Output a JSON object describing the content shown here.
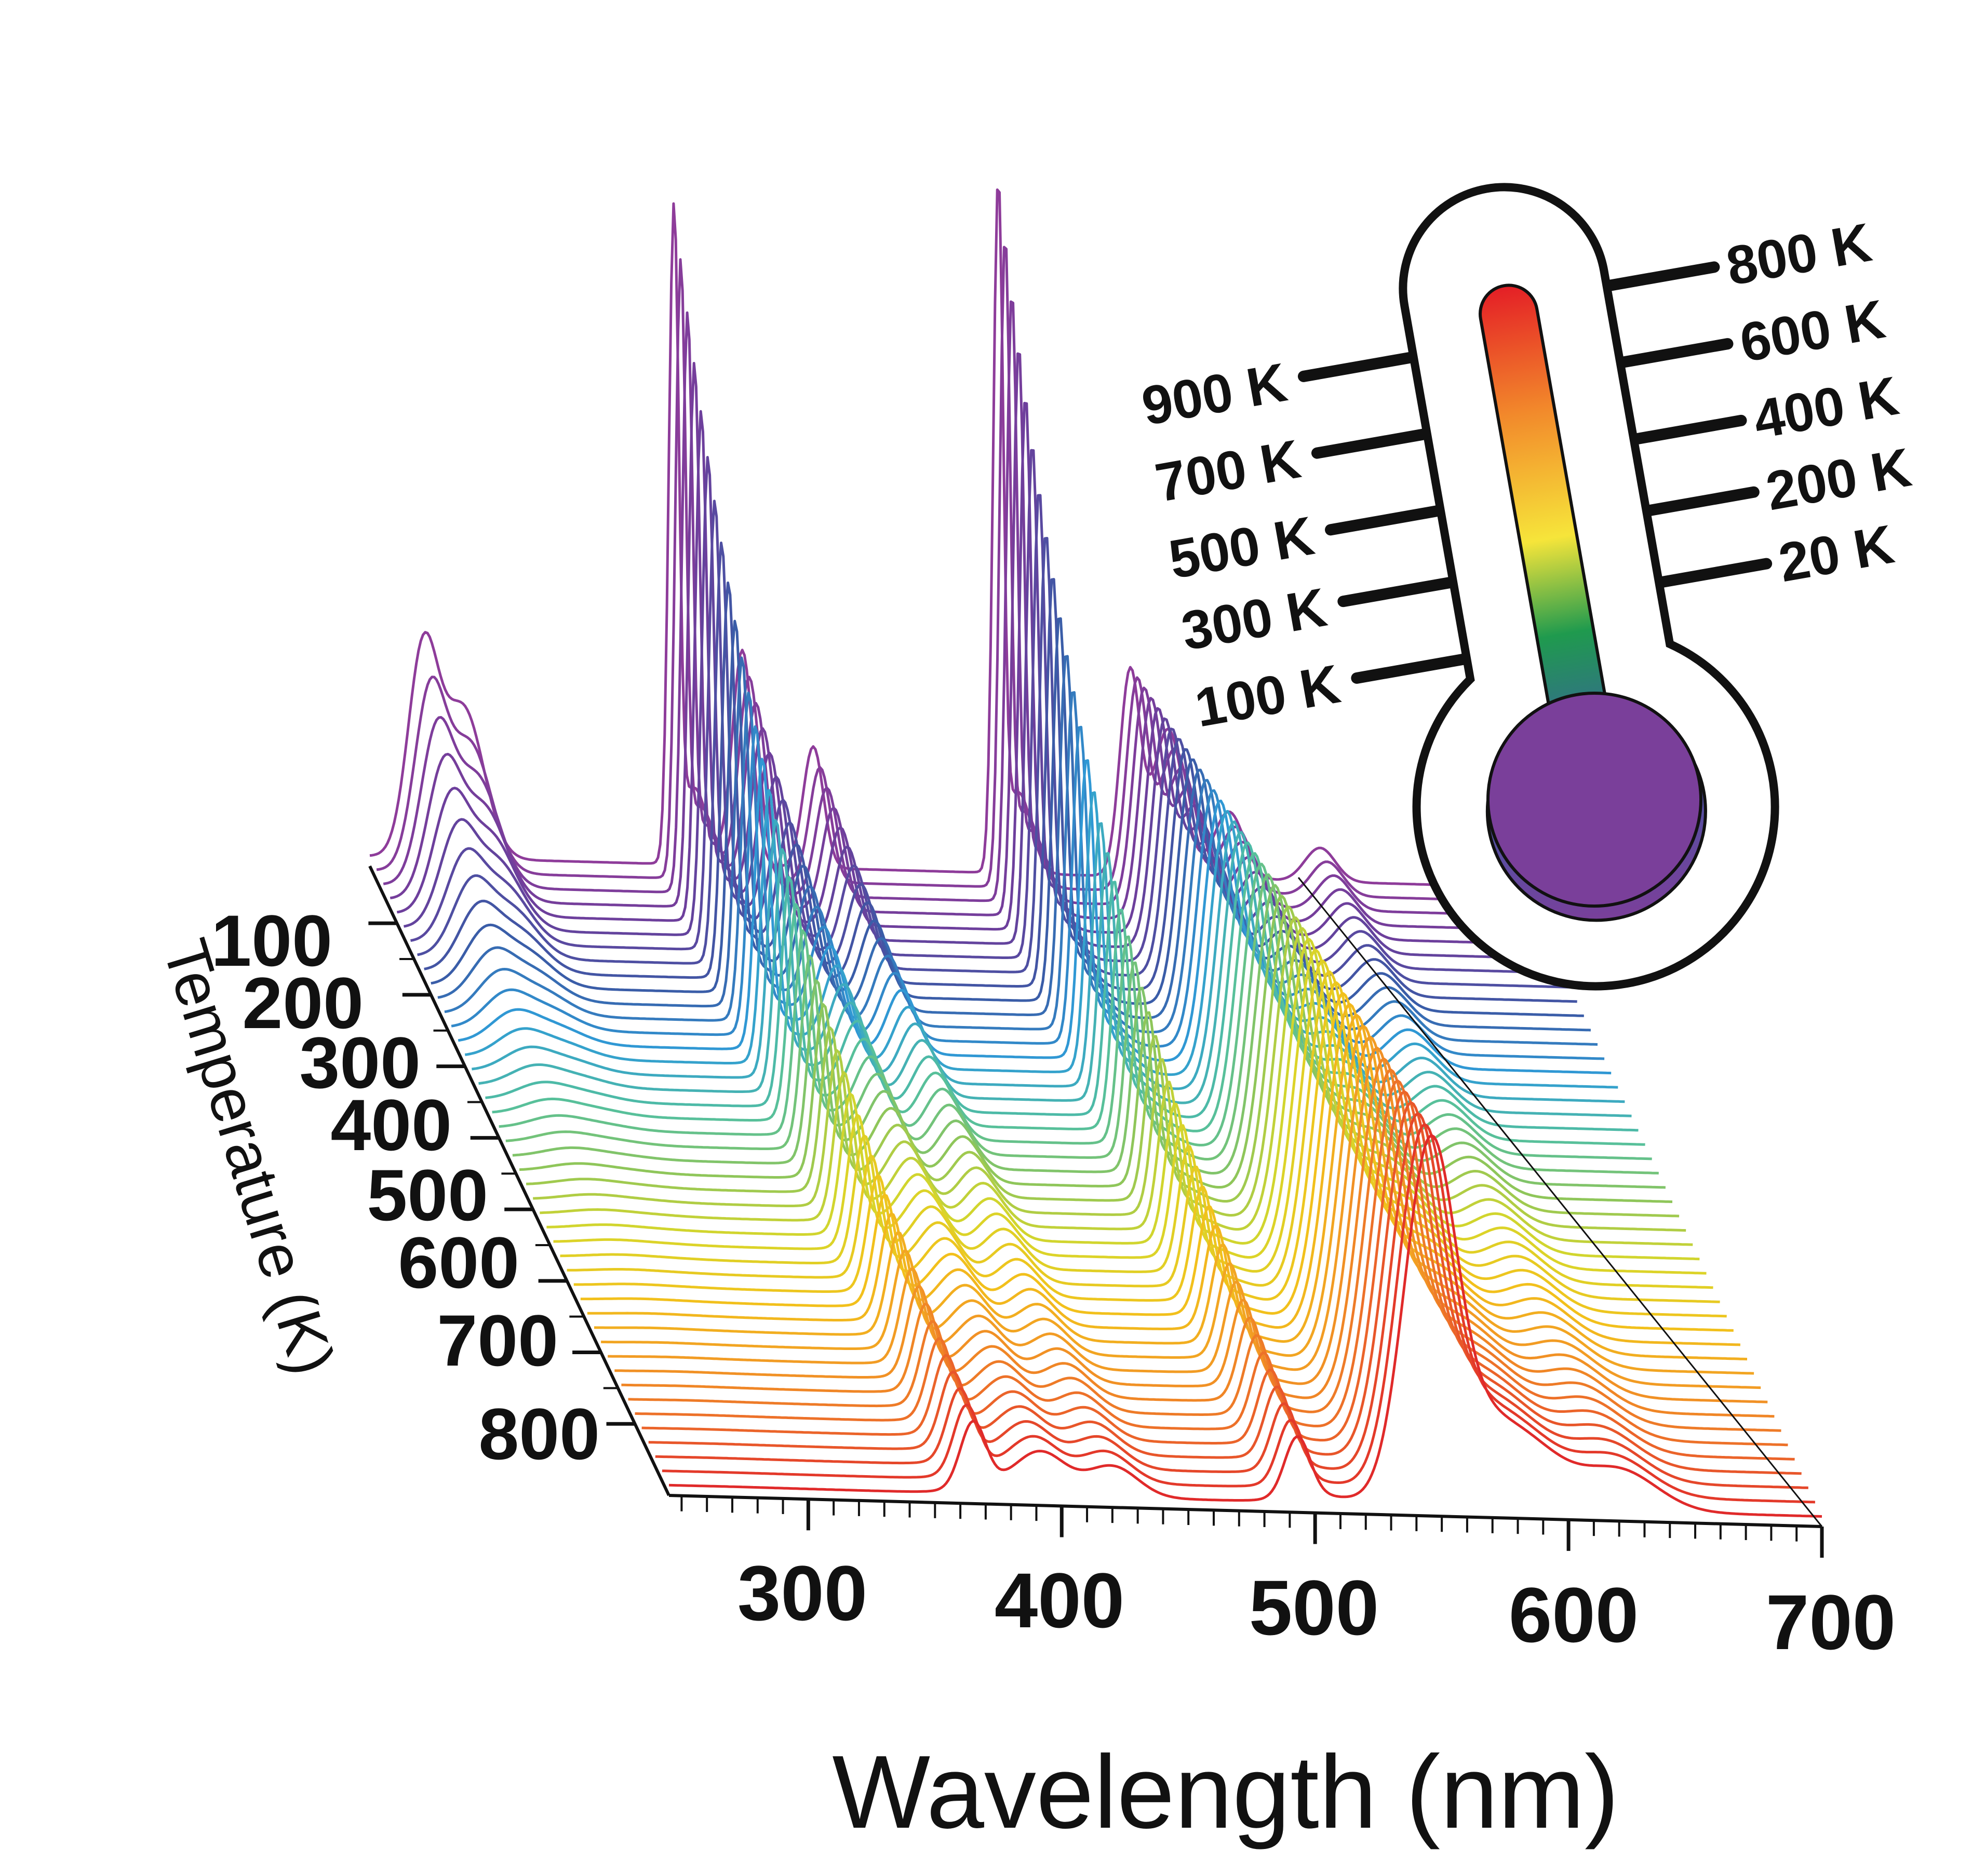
{
  "chart_data": {
    "type": "line",
    "subtype": "3d-waterfall",
    "title": "",
    "xlabel": "Wavelength (nm)",
    "ylabel": "Temperature (K)",
    "xlim": [
      245,
      700
    ],
    "ylim": [
      20,
      900
    ],
    "x_ticks": [
      "300",
      "400",
      "500",
      "600",
      "700"
    ],
    "y_ticks": [
      "100",
      "200",
      "300",
      "400",
      "500",
      "600",
      "700",
      "800"
    ],
    "temperatures": [
      20,
      40,
      60,
      80,
      100,
      120,
      140,
      160,
      180,
      200,
      220,
      240,
      260,
      280,
      300,
      320,
      340,
      360,
      380,
      400,
      420,
      440,
      460,
      480,
      500,
      520,
      540,
      560,
      580,
      600,
      620,
      640,
      660,
      680,
      700,
      720,
      740,
      760,
      780,
      800,
      820,
      840,
      860,
      880,
      900
    ],
    "peaks": [
      {
        "center_nm": 266,
        "height_20K": 0.3,
        "height_900K": 0.0,
        "width_nm": 6,
        "decay": "fast"
      },
      {
        "center_nm": 282,
        "height_20K": 0.22,
        "height_900K": 0.0,
        "width_nm": 8,
        "decay": "fast"
      },
      {
        "center_nm": 365,
        "height_20K": 0.95,
        "height_900K": 0.06,
        "width_nm": 2,
        "decay": "slow"
      },
      {
        "center_nm": 392,
        "height_20K": 0.32,
        "height_900K": 0.05,
        "width_nm": 4,
        "decay": "slow"
      },
      {
        "center_nm": 420,
        "height_20K": 0.18,
        "height_900K": 0.04,
        "width_nm": 4,
        "decay": "slow"
      },
      {
        "center_nm": 493,
        "height_20K": 1.0,
        "height_900K": 0.05,
        "width_nm": 2,
        "decay": "slow"
      },
      {
        "center_nm": 545,
        "height_20K": 0.3,
        "height_900K": 0.48,
        "width_nm": 4,
        "decay": "grow"
      },
      {
        "center_nm": 560,
        "height_20K": 0.22,
        "height_900K": 0.1,
        "width_nm": 6,
        "decay": "slow"
      },
      {
        "center_nm": 584,
        "height_20K": 0.1,
        "height_900K": 0.08,
        "width_nm": 6,
        "decay": "slow"
      },
      {
        "center_nm": 620,
        "height_20K": 0.05,
        "height_900K": 0.06,
        "width_nm": 6,
        "decay": "slow"
      }
    ],
    "color_scale": [
      "#8e3c9a",
      "#6a3f9c",
      "#3a5aa6",
      "#2f9bd6",
      "#52bfa0",
      "#8fc65a",
      "#d8d62a",
      "#f2c21c",
      "#f29a24",
      "#ec6a2a",
      "#e02a2a"
    ],
    "legend": "none"
  },
  "thermometer": {
    "left_labels": [
      "900 K",
      "700 K",
      "500 K",
      "300 K",
      "100 K"
    ],
    "right_labels": [
      "800 K",
      "600 K",
      "400 K",
      "200 K",
      "20 K"
    ],
    "gradient_colors": [
      "#e41e26",
      "#f2892b",
      "#f6e53a",
      "#1f9a4e",
      "#3d5aa6",
      "#7a3f9a"
    ]
  }
}
